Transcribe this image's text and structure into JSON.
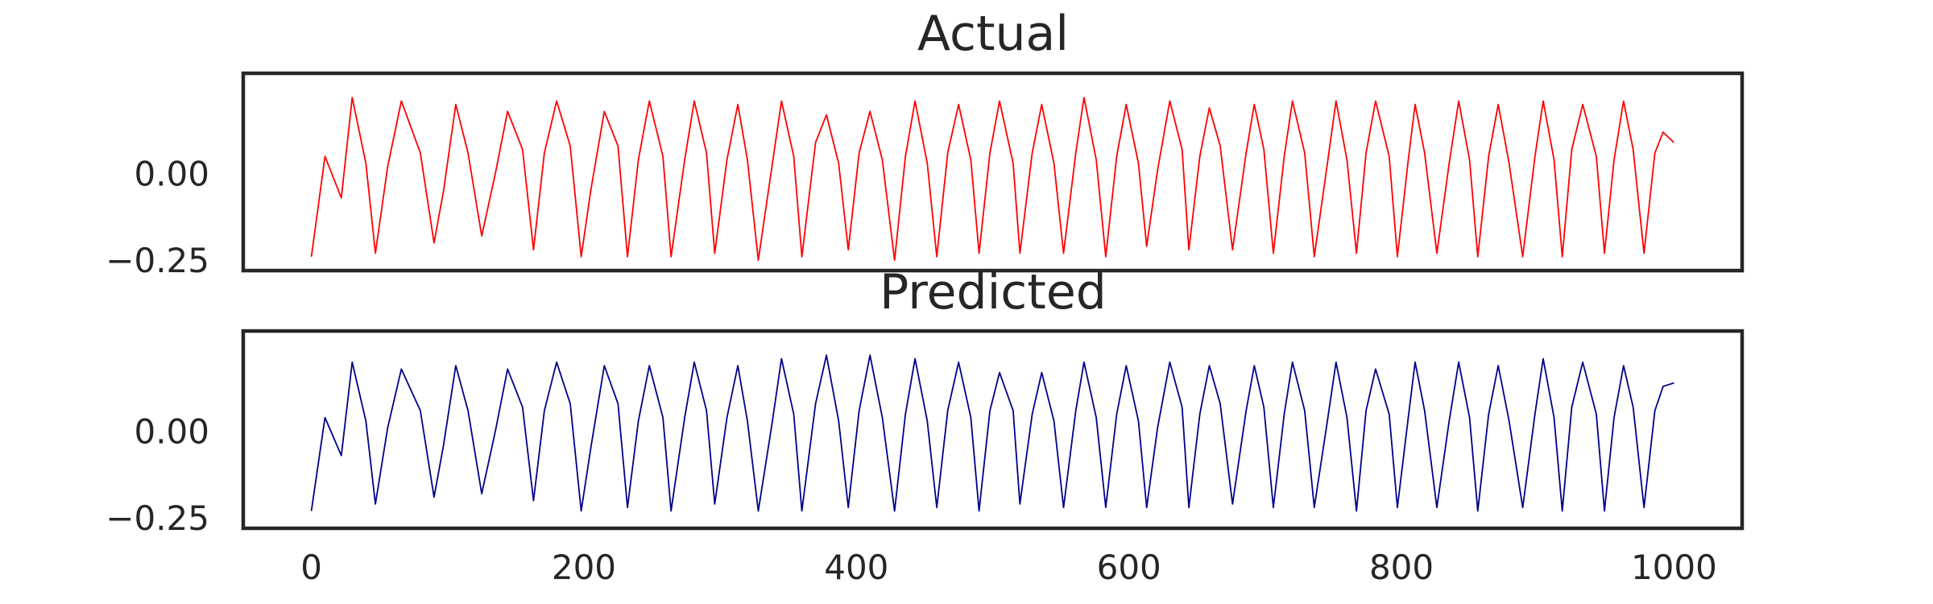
{
  "chart_data": [
    {
      "type": "line",
      "title": "Actual",
      "xlabel": "",
      "ylabel": "",
      "xlim": [
        -50,
        1050
      ],
      "ylim": [
        -0.28,
        0.29
      ],
      "grid": false,
      "yticks": [
        {
          "value": -0.25,
          "label": "−0.25"
        },
        {
          "value": 0.0,
          "label": "0.00"
        }
      ],
      "series": [
        {
          "color": "#ff0000",
          "x": [
            0,
            10,
            22,
            30,
            40,
            47,
            56,
            66,
            80,
            90,
            97,
            106,
            115,
            125,
            135,
            144,
            155,
            163,
            171,
            180,
            190,
            198,
            205,
            215,
            225,
            232,
            240,
            248,
            258,
            264,
            274,
            281,
            290,
            296,
            305,
            313,
            320,
            328,
            338,
            345,
            354,
            360,
            370,
            378,
            387,
            394,
            402,
            410,
            419,
            428,
            436,
            443,
            452,
            459,
            467,
            475,
            484,
            490,
            498,
            505,
            515,
            520,
            529,
            536,
            545,
            552,
            561,
            567,
            576,
            583,
            591,
            598,
            607,
            613,
            621,
            630,
            639,
            644,
            652,
            659,
            667,
            676,
            686,
            692,
            699,
            706,
            714,
            720,
            729,
            736,
            746,
            752,
            760,
            767,
            774,
            781,
            791,
            797,
            805,
            810,
            817,
            826,
            835,
            842,
            850,
            856,
            864,
            871,
            879,
            889,
            898,
            904,
            912,
            918,
            925,
            933,
            943,
            949,
            956,
            963,
            970,
            978,
            986,
            992,
            1000
          ],
          "y": [
            -0.24,
            0.05,
            -0.07,
            0.22,
            0.03,
            -0.23,
            0.02,
            0.21,
            0.06,
            -0.2,
            -0.05,
            0.2,
            0.06,
            -0.18,
            0.0,
            0.18,
            0.07,
            -0.22,
            0.06,
            0.21,
            0.08,
            -0.24,
            -0.05,
            0.18,
            0.08,
            -0.24,
            0.04,
            0.21,
            0.05,
            -0.24,
            0.04,
            0.21,
            0.06,
            -0.23,
            0.04,
            0.2,
            0.04,
            -0.25,
            0.02,
            0.21,
            0.05,
            -0.24,
            0.09,
            0.17,
            0.03,
            -0.22,
            0.06,
            0.18,
            0.04,
            -0.25,
            0.05,
            0.21,
            0.03,
            -0.24,
            0.06,
            0.2,
            0.04,
            -0.23,
            0.06,
            0.21,
            0.03,
            -0.23,
            0.06,
            0.2,
            0.03,
            -0.23,
            0.06,
            0.22,
            0.04,
            -0.24,
            0.05,
            0.2,
            0.03,
            -0.21,
            0.01,
            0.21,
            0.07,
            -0.22,
            0.05,
            0.19,
            0.08,
            -0.22,
            0.06,
            0.2,
            0.07,
            -0.23,
            0.05,
            0.21,
            0.06,
            -0.24,
            0.04,
            0.21,
            0.04,
            -0.23,
            0.06,
            0.21,
            0.05,
            -0.24,
            0.04,
            0.2,
            0.06,
            -0.23,
            0.03,
            0.21,
            0.04,
            -0.24,
            0.05,
            0.2,
            0.03,
            -0.24,
            0.05,
            0.21,
            0.04,
            -0.24,
            0.07,
            0.2,
            0.05,
            -0.23,
            0.04,
            0.21,
            0.07,
            -0.23,
            0.06,
            0.12,
            0.09
          ]
        }
      ]
    },
    {
      "type": "line",
      "title": "Predicted",
      "xlabel": "",
      "ylabel": "",
      "xlim": [
        -50,
        1050
      ],
      "ylim": [
        -0.28,
        0.29
      ],
      "grid": false,
      "xticks": [
        {
          "value": 0,
          "label": "0"
        },
        {
          "value": 200,
          "label": "200"
        },
        {
          "value": 400,
          "label": "400"
        },
        {
          "value": 600,
          "label": "600"
        },
        {
          "value": 800,
          "label": "800"
        },
        {
          "value": 1000,
          "label": "1000"
        }
      ],
      "yticks": [
        {
          "value": -0.25,
          "label": "−0.25"
        },
        {
          "value": 0.0,
          "label": "0.00"
        }
      ],
      "series": [
        {
          "color": "#00008b",
          "x": [
            0,
            10,
            22,
            30,
            40,
            47,
            56,
            66,
            80,
            90,
            97,
            106,
            115,
            125,
            135,
            144,
            155,
            163,
            171,
            180,
            190,
            198,
            205,
            215,
            225,
            232,
            240,
            248,
            258,
            264,
            274,
            281,
            290,
            296,
            305,
            313,
            320,
            328,
            338,
            345,
            354,
            360,
            370,
            378,
            387,
            394,
            402,
            410,
            419,
            428,
            436,
            443,
            452,
            459,
            467,
            475,
            484,
            490,
            498,
            505,
            515,
            520,
            529,
            536,
            545,
            552,
            561,
            567,
            576,
            583,
            591,
            598,
            607,
            613,
            621,
            630,
            639,
            644,
            652,
            659,
            667,
            676,
            686,
            692,
            699,
            706,
            714,
            720,
            729,
            736,
            746,
            752,
            760,
            767,
            774,
            781,
            791,
            797,
            805,
            810,
            817,
            826,
            835,
            842,
            850,
            856,
            864,
            871,
            879,
            889,
            898,
            904,
            912,
            918,
            925,
            933,
            943,
            949,
            956,
            963,
            970,
            978,
            986,
            992,
            1000
          ],
          "y": [
            -0.23,
            0.04,
            -0.07,
            0.2,
            0.03,
            -0.21,
            0.01,
            0.18,
            0.06,
            -0.19,
            -0.04,
            0.19,
            0.06,
            -0.18,
            0.0,
            0.18,
            0.07,
            -0.2,
            0.06,
            0.2,
            0.08,
            -0.23,
            -0.05,
            0.19,
            0.08,
            -0.22,
            0.03,
            0.19,
            0.04,
            -0.23,
            0.04,
            0.2,
            0.06,
            -0.21,
            0.04,
            0.19,
            0.03,
            -0.23,
            0.02,
            0.21,
            0.05,
            -0.23,
            0.08,
            0.22,
            0.03,
            -0.22,
            0.06,
            0.22,
            0.04,
            -0.23,
            0.05,
            0.21,
            0.03,
            -0.22,
            0.06,
            0.2,
            0.04,
            -0.23,
            0.06,
            0.17,
            0.06,
            -0.21,
            0.05,
            0.17,
            0.03,
            -0.22,
            0.06,
            0.2,
            0.04,
            -0.22,
            0.05,
            0.19,
            0.03,
            -0.22,
            0.01,
            0.2,
            0.07,
            -0.22,
            0.05,
            0.19,
            0.08,
            -0.21,
            0.06,
            0.19,
            0.07,
            -0.22,
            0.05,
            0.2,
            0.06,
            -0.22,
            0.04,
            0.2,
            0.04,
            -0.23,
            0.06,
            0.18,
            0.05,
            -0.22,
            0.04,
            0.2,
            0.06,
            -0.22,
            0.03,
            0.2,
            0.04,
            -0.23,
            0.05,
            0.19,
            0.03,
            -0.22,
            0.05,
            0.21,
            0.04,
            -0.23,
            0.07,
            0.2,
            0.05,
            -0.23,
            0.04,
            0.19,
            0.07,
            -0.22,
            0.06,
            0.13,
            0.14
          ]
        }
      ]
    }
  ]
}
